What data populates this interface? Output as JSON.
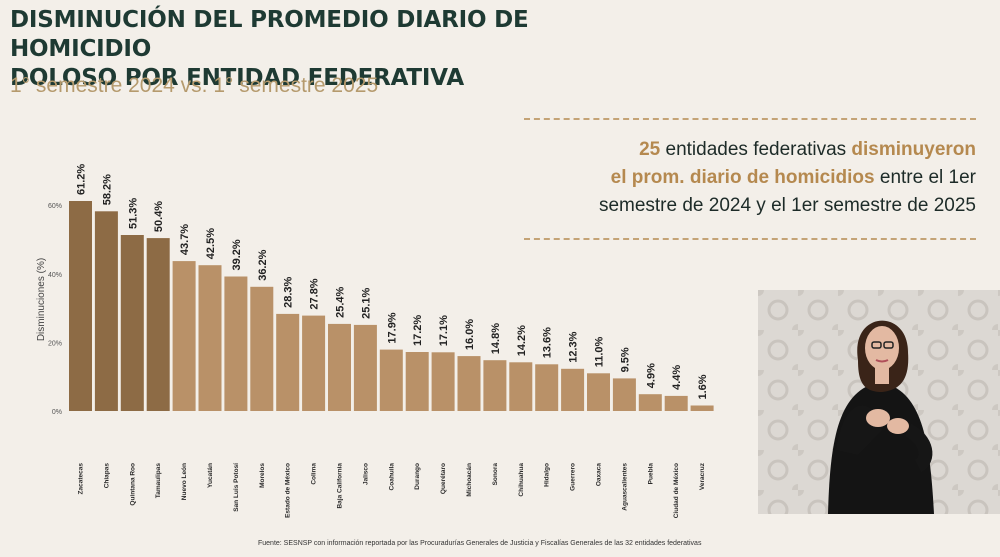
{
  "header": {
    "title_line1": "DISMINUCIÓN DEL PROMEDIO DIARIO DE HOMICIDIO",
    "title_line2": "DOLOSO POR ENTIDAD FEDERATIVA",
    "subtitle": "1° semestre 2024 vs. 1° semestre 2025"
  },
  "callout": {
    "count": "25",
    "text1": " entidades federativas ",
    "hl1": "disminuyeron",
    "hl2": "el prom. diario de homicidios",
    "text2": " entre el 1er",
    "line3": "semestre de 2024 y el 1er semestre de 2025"
  },
  "source": "Fuente: SESNSP con información reportada por las Procuradurías Generales de Justicia y Fiscalías Generales de las 32 entidades federativas",
  "colors": {
    "bar_dark": "#8d6b45",
    "bar_light": "#b99168",
    "accent": "#b5894f"
  },
  "chart_data": {
    "type": "bar",
    "title": "Disminución del promedio diario de homicidio doloso por entidad federativa",
    "ylabel": "Disminuciones (%)",
    "ylim": [
      0,
      65
    ],
    "yticks": [
      "0%",
      "20%",
      "40%",
      "60%"
    ],
    "ytick_values": [
      0,
      20,
      40,
      60
    ],
    "dark_count": 4,
    "categories": [
      "Zacatecas",
      "Chiapas",
      "Quintana Roo",
      "Tamaulipas",
      "Nuevo León",
      "Yucatán",
      "San Luis Potosí",
      "Morelos",
      "Estado de México",
      "Colima",
      "Baja California",
      "Jalisco",
      "Coahuila",
      "Durango",
      "Querétaro",
      "Michoacán",
      "Sonora",
      "Chihuahua",
      "Hidalgo",
      "Guerrero",
      "Oaxaca",
      "Aguascalientes",
      "Puebla",
      "Ciudad de México",
      "Veracruz"
    ],
    "values": [
      61.2,
      58.2,
      51.3,
      50.4,
      43.7,
      42.5,
      39.2,
      36.2,
      28.3,
      27.8,
      25.4,
      25.1,
      17.9,
      17.2,
      17.1,
      16.0,
      14.8,
      14.2,
      13.6,
      12.3,
      11.0,
      9.5,
      4.9,
      4.4,
      1.6
    ],
    "labels": [
      "61.2%",
      "58.2%",
      "51.3%",
      "50.4%",
      "43.7%",
      "42.5%",
      "39.2%",
      "36.2%",
      "28.3%",
      "27.8%",
      "25.4%",
      "25.1%",
      "17.9%",
      "17.2%",
      "17.1%",
      "16.0%",
      "14.8%",
      "14.2%",
      "13.6%",
      "12.3%",
      "11.0%",
      "9.5%",
      "4.9%",
      "4.4%",
      "1.6%"
    ]
  }
}
